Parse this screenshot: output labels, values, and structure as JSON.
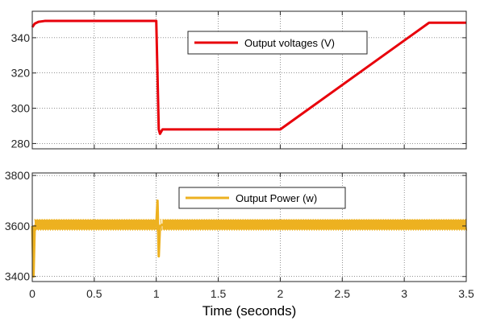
{
  "chart_data": [
    {
      "type": "line",
      "title": "",
      "xlabel": "",
      "ylabel": "",
      "xlim": [
        0,
        3.5
      ],
      "ylim": [
        277,
        355
      ],
      "xticks": [
        0,
        0.5,
        1,
        1.5,
        2,
        2.5,
        3,
        3.5
      ],
      "yticks": [
        280,
        300,
        320,
        340
      ],
      "ytick_labels": [
        "280",
        "300",
        "320",
        "340"
      ],
      "grid": true,
      "legend_position": "top-right",
      "series": [
        {
          "name": "Output voltages (V)",
          "color": "#e8000b",
          "x": [
            0,
            0.02,
            0.05,
            0.1,
            0.2,
            1.0,
            1.02,
            1.03,
            1.05,
            1.1,
            2.0,
            3.2,
            3.5
          ],
          "y": [
            346,
            348,
            349,
            349.5,
            349.5,
            349.5,
            288,
            285.5,
            288,
            288,
            288,
            348.5,
            348.5
          ]
        }
      ]
    },
    {
      "type": "line",
      "title": "",
      "xlabel": "Time (seconds)",
      "ylabel": "",
      "xlim": [
        0,
        3.5
      ],
      "ylim": [
        3380,
        3810
      ],
      "xticks": [
        0,
        0.5,
        1,
        1.5,
        2,
        2.5,
        3,
        3.5
      ],
      "xtick_labels": [
        "0",
        "0.5",
        "1",
        "1.5",
        "2",
        "2.5",
        "3",
        "3.5"
      ],
      "yticks": [
        3400,
        3600,
        3800
      ],
      "ytick_labels": [
        "3400",
        "3600",
        "3800"
      ],
      "grid": true,
      "legend_position": "top-right",
      "series": [
        {
          "name": "Output Power (w)",
          "color": "#edb120",
          "ripple_band": [
            3585,
            3625
          ],
          "x": [
            0,
            0.01,
            0.02,
            1.0,
            1.01,
            1.02,
            1.03,
            1.05,
            3.5
          ],
          "y": [
            3600,
            3400,
            3600,
            3600,
            3700,
            3480,
            3600,
            3605,
            3600
          ]
        }
      ]
    }
  ]
}
